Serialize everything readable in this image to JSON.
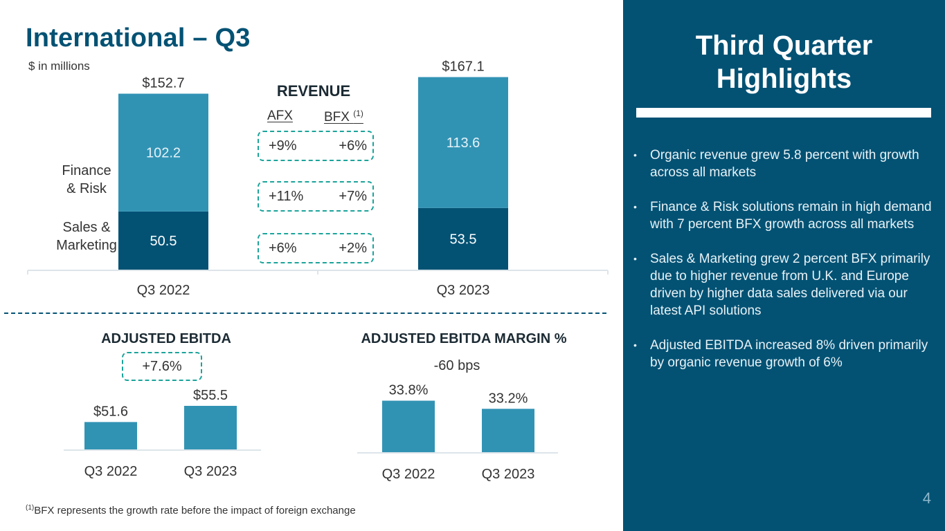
{
  "header": {
    "title": "International – Q3",
    "subtitle": "$ in millions"
  },
  "colors": {
    "brand_dark": "#035274",
    "bar_light": "#3193b4",
    "bar_dark": "#035274",
    "accent_dashed": "#1aa39a",
    "panel_bg": "#035274"
  },
  "revenue": {
    "heading": "REVENUE",
    "afx_label": "AFX",
    "bfx_label": "BFX",
    "bfx_footnote_marker": "(1)",
    "segment_labels": {
      "finance_risk": [
        "Finance",
        "& Risk"
      ],
      "sales_marketing": [
        "Sales &",
        "Marketing"
      ]
    },
    "growth_rows": [
      {
        "row": "total",
        "afx": "+9%",
        "bfx": "+6%"
      },
      {
        "row": "finance_risk",
        "afx": "+11%",
        "bfx": "+7%"
      },
      {
        "row": "sales_marketing",
        "afx": "+6%",
        "bfx": "+2%"
      }
    ]
  },
  "ebitda": {
    "heading": "ADJUSTED EBITDA",
    "change": "+7.6%"
  },
  "margin": {
    "heading": "ADJUSTED EBITDA MARGIN %",
    "change": "-60 bps"
  },
  "chart_data": [
    {
      "type": "bar",
      "stacked": true,
      "title": "REVENUE",
      "categories": [
        "Q3 2022",
        "Q3 2023"
      ],
      "series": [
        {
          "name": "Sales & Marketing",
          "values": [
            50.5,
            53.5
          ],
          "labels": [
            "50.5",
            "53.5"
          ]
        },
        {
          "name": "Finance & Risk",
          "values": [
            102.2,
            113.6
          ],
          "labels": [
            "102.2",
            "113.6"
          ]
        }
      ],
      "totals": [
        152.7,
        167.1
      ],
      "total_labels": [
        "$152.7",
        "$167.1"
      ],
      "xlabel": "",
      "ylabel": "",
      "ylim": [
        0,
        180
      ],
      "grid": false
    },
    {
      "type": "bar",
      "title": "ADJUSTED EBITDA",
      "categories": [
        "Q3 2022",
        "Q3 2023"
      ],
      "values": [
        51.6,
        55.5
      ],
      "value_labels": [
        "$51.6",
        "$55.5"
      ],
      "annotation": "+7.6%",
      "ylim": [
        45,
        60
      ],
      "grid": false
    },
    {
      "type": "bar",
      "title": "ADJUSTED EBITDA MARGIN %",
      "categories": [
        "Q3 2022",
        "Q3 2023"
      ],
      "values": [
        33.8,
        33.2
      ],
      "value_labels": [
        "33.8%",
        "33.2%"
      ],
      "annotation": "-60 bps",
      "ylim": [
        30,
        35
      ],
      "grid": false
    }
  ],
  "highlights": {
    "title": "Third Quarter Highlights",
    "items": [
      "Organic revenue grew 5.8 percent with growth across all markets",
      "Finance & Risk solutions remain in high demand with 7 percent BFX growth across all markets",
      "Sales & Marketing grew 2 percent BFX primarily due to higher revenue from U.K. and Europe driven by higher data sales delivered via our latest API solutions",
      "Adjusted EBITDA increased 8% driven primarily by organic revenue growth of 6%"
    ],
    "bullet": "•"
  },
  "footnote": {
    "marker": "(1)",
    "text": "BFX represents the growth rate before the impact of foreign exchange"
  },
  "page_number": "4"
}
